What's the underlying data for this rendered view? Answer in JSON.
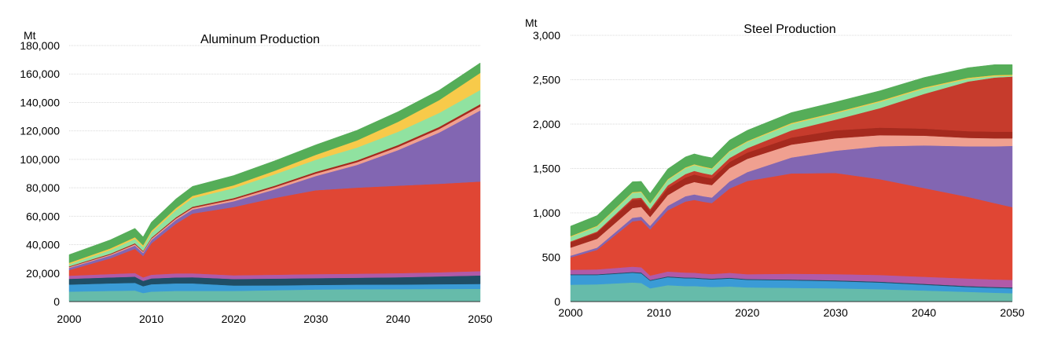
{
  "chart_data": [
    {
      "type": "area",
      "stacked": true,
      "title": "Aluminum Production",
      "unit_label": "Mt",
      "xlabel": "",
      "ylabel": "",
      "xlim": [
        2000,
        2050
      ],
      "ylim": [
        0,
        180000
      ],
      "yticks": [
        0,
        20000,
        40000,
        60000,
        80000,
        100000,
        120000,
        140000,
        160000,
        180000
      ],
      "ytick_labels": [
        "0",
        "20,000",
        "40,000",
        "60,000",
        "80,000",
        "100,000",
        "120,000",
        "140,000",
        "160,000",
        "180,000"
      ],
      "xticks": [
        2000,
        2010,
        2020,
        2030,
        2040,
        2050
      ],
      "xtick_labels": [
        "2000",
        "2010",
        "2020",
        "2030",
        "2040",
        "2050"
      ],
      "grid": "horizontal",
      "legend": "none",
      "x": [
        2000,
        2005,
        2008,
        2009,
        2010,
        2013,
        2015,
        2020,
        2025,
        2030,
        2035,
        2040,
        2045,
        2050
      ],
      "series": [
        {
          "color": "#66bbaa",
          "values": [
            7000,
            7500,
            7800,
            6000,
            7000,
            7500,
            7500,
            7500,
            8000,
            8500,
            8700,
            8800,
            8900,
            9000
          ]
        },
        {
          "color": "#3a9bd6",
          "values": [
            5000,
            5300,
            5400,
            4800,
            5200,
            5300,
            5300,
            3800,
            3400,
            3200,
            3200,
            3200,
            3300,
            3400
          ]
        },
        {
          "color": "#1f4e66",
          "values": [
            4000,
            4200,
            4300,
            3800,
            4100,
            4200,
            4300,
            4600,
            4800,
            4800,
            4900,
            5100,
            5500,
            6000
          ]
        },
        {
          "color": "#b05aa8",
          "values": [
            2200,
            2400,
            2600,
            2400,
            2600,
            2800,
            2800,
            2600,
            2700,
            2800,
            2800,
            2900,
            2900,
            3000
          ]
        },
        {
          "color": "#e04634",
          "values": [
            4000,
            11000,
            17000,
            15000,
            22000,
            35000,
            42000,
            48000,
            54000,
            59000,
            60500,
            61500,
            62200,
            63000
          ]
        },
        {
          "color": "#8266b2",
          "values": [
            1500,
            2000,
            2300,
            2200,
            2400,
            2700,
            2800,
            4000,
            6000,
            10000,
            16000,
            25000,
            36000,
            50000
          ]
        },
        {
          "color": "#f0a090",
          "values": [
            600,
            700,
            900,
            800,
            900,
            1000,
            1100,
            1300,
            1500,
            1700,
            1900,
            2200,
            2500,
            2800
          ]
        },
        {
          "color": "#a52a1e",
          "values": [
            500,
            600,
            700,
            600,
            700,
            800,
            900,
            1000,
            1100,
            1200,
            1300,
            1400,
            1500,
            1600
          ]
        },
        {
          "color": "#90e2a0",
          "values": [
            1500,
            2500,
            3000,
            2800,
            3500,
            5000,
            6000,
            7000,
            8000,
            8500,
            9000,
            9300,
            9800,
            10000
          ]
        },
        {
          "color": "#f7ca4a",
          "values": [
            1000,
            1200,
            1300,
            1200,
            1300,
            1500,
            1600,
            2000,
            2500,
            3500,
            5000,
            7000,
            9000,
            12000
          ]
        },
        {
          "color": "#55ad58",
          "values": [
            5700,
            6000,
            6200,
            5900,
            6100,
            6500,
            6700,
            6800,
            7000,
            7000,
            7100,
            7100,
            7000,
            7000
          ]
        }
      ]
    },
    {
      "type": "area",
      "stacked": true,
      "title": "Steel Production",
      "unit_label": "Mt",
      "xlabel": "",
      "ylabel": "",
      "xlim": [
        2000,
        2050
      ],
      "ylim": [
        0,
        3000
      ],
      "yticks": [
        0,
        500,
        1000,
        1500,
        2000,
        2500,
        3000
      ],
      "ytick_labels": [
        "0",
        "500",
        "1,000",
        "1,500",
        "2,000",
        "2,500",
        "3,000"
      ],
      "xticks": [
        2000,
        2010,
        2020,
        2030,
        2040,
        2050
      ],
      "xtick_labels": [
        "2000",
        "2010",
        "2020",
        "2030",
        "2040",
        "2050"
      ],
      "grid": "horizontal",
      "legend": "none",
      "x": [
        2000,
        2003,
        2007,
        2008,
        2009,
        2011,
        2013,
        2014,
        2015,
        2016,
        2018,
        2020,
        2025,
        2030,
        2035,
        2040,
        2045,
        2048,
        2050
      ],
      "series": [
        {
          "color": "#66bbaa",
          "values": [
            190,
            195,
            215,
            210,
            150,
            185,
            175,
            175,
            170,
            165,
            170,
            160,
            155,
            150,
            140,
            125,
            110,
            100,
            95
          ]
        },
        {
          "color": "#3a9bd6",
          "values": [
            110,
            105,
            110,
            108,
            85,
            90,
            88,
            87,
            85,
            85,
            90,
            85,
            85,
            80,
            75,
            65,
            55,
            55,
            55
          ]
        },
        {
          "color": "#1f4e66",
          "values": [
            8,
            8,
            9,
            9,
            8,
            9,
            9,
            9,
            9,
            9,
            9,
            9,
            9,
            10,
            10,
            10,
            10,
            10,
            10
          ]
        },
        {
          "color": "#b05aa8",
          "values": [
            50,
            55,
            60,
            60,
            50,
            55,
            55,
            55,
            52,
            52,
            55,
            55,
            65,
            70,
            75,
            80,
            85,
            85,
            85
          ]
        },
        {
          "color": "#e04634",
          "values": [
            140,
            220,
            510,
            530,
            520,
            690,
            800,
            820,
            810,
            800,
            950,
            1050,
            1130,
            1140,
            1080,
            1000,
            920,
            860,
            820
          ]
        },
        {
          "color": "#8266b2",
          "values": [
            20,
            25,
            40,
            40,
            40,
            50,
            60,
            62,
            62,
            62,
            80,
            100,
            180,
            250,
            370,
            480,
            570,
            640,
            690
          ]
        },
        {
          "color": "#f0a090",
          "values": [
            90,
            100,
            110,
            110,
            100,
            120,
            130,
            140,
            140,
            140,
            150,
            150,
            145,
            140,
            125,
            110,
            95,
            90,
            85
          ]
        },
        {
          "color": "#a52a1e",
          "values": [
            60,
            70,
            90,
            85,
            70,
            80,
            80,
            85,
            80,
            75,
            70,
            70,
            80,
            90,
            85,
            80,
            75,
            75,
            75
          ]
        },
        {
          "color": "#c63b2c",
          "values": [
            10,
            12,
            20,
            20,
            20,
            30,
            40,
            40,
            40,
            40,
            45,
            50,
            80,
            120,
            220,
            390,
            560,
            610,
            620
          ]
        },
        {
          "color": "#90e2a0",
          "values": [
            50,
            55,
            60,
            60,
            55,
            60,
            65,
            65,
            65,
            65,
            70,
            70,
            72,
            72,
            70,
            60,
            30,
            15,
            10
          ]
        },
        {
          "color": "#f7ca4a",
          "values": [
            10,
            10,
            10,
            10,
            10,
            10,
            10,
            10,
            10,
            10,
            10,
            10,
            12,
            12,
            12,
            12,
            12,
            12,
            12
          ]
        },
        {
          "color": "#55ad58",
          "values": [
            112,
            115,
            116,
            113,
            112,
            116,
            118,
            117,
            117,
            117,
            121,
            121,
            117,
            116,
            113,
            113,
            113,
            118,
            113
          ]
        }
      ]
    }
  ]
}
